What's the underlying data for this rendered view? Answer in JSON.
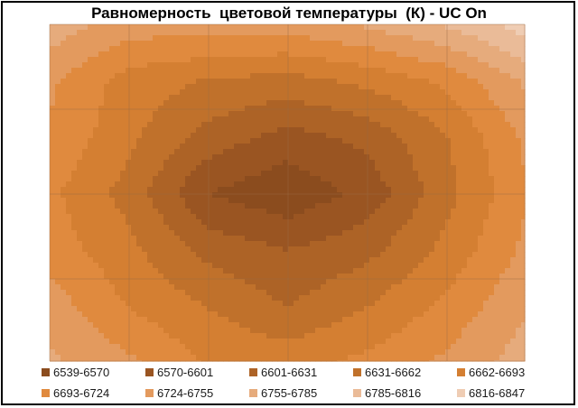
{
  "chart_data": {
    "type": "heatmap",
    "subtype": "contour",
    "title": "Равномерность  цветовой температуры  (К) - UC On",
    "legend_position": "bottom",
    "grid": true,
    "unit": "K",
    "levels": [
      {
        "label": "6539-6570",
        "min": 6539,
        "max": 6570,
        "color": "#8b4c1e"
      },
      {
        "label": "6570-6601",
        "min": 6570,
        "max": 6601,
        "color": "#9a5522"
      },
      {
        "label": "6601-6631",
        "min": 6601,
        "max": 6631,
        "color": "#ad6326"
      },
      {
        "label": "6631-6662",
        "min": 6631,
        "max": 6662,
        "color": "#c0712b"
      },
      {
        "label": "6662-6693",
        "min": 6662,
        "max": 6693,
        "color": "#d47f32"
      },
      {
        "label": "6693-6724",
        "min": 6693,
        "max": 6724,
        "color": "#e08a3e"
      },
      {
        "label": "6724-6755",
        "min": 6724,
        "max": 6755,
        "color": "#e39a5e"
      },
      {
        "label": "6755-6785",
        "min": 6755,
        "max": 6785,
        "color": "#e6ab7c"
      },
      {
        "label": "6785-6816",
        "min": 6785,
        "max": 6816,
        "color": "#eabb98"
      },
      {
        "label": "6816-6847",
        "min": 6816,
        "max": 6847,
        "color": "#efcdb4"
      }
    ],
    "grid_values": [
      [
        6775,
        6740,
        6740,
        6740,
        6760,
        6790,
        6830
      ],
      [
        6730,
        6680,
        6660,
        6650,
        6670,
        6700,
        6760
      ],
      [
        6720,
        6670,
        6620,
        6590,
        6610,
        6660,
        6730
      ],
      [
        6700,
        6650,
        6570,
        6545,
        6580,
        6650,
        6720
      ],
      [
        6710,
        6670,
        6620,
        6600,
        6620,
        6670,
        6730
      ],
      [
        6740,
        6690,
        6660,
        6630,
        6660,
        6700,
        6750
      ],
      [
        6760,
        6730,
        6690,
        6680,
        6700,
        6730,
        6770
      ]
    ]
  }
}
